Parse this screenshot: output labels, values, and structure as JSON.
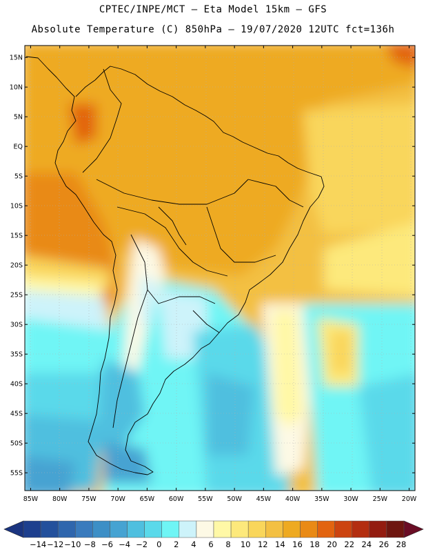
{
  "header": {
    "line1": "CPTEC/INPE/MCT –  Eta Model 15km – GFS",
    "line2": "Absolute Temperature (C) 850hPa – 19/07/2020 12UTC fct=136h"
  },
  "map": {
    "region": "South America",
    "lon_range": [
      -86,
      -19
    ],
    "lat_range": [
      -58,
      17
    ],
    "lat_labels": [
      "15N",
      "10N",
      "5N",
      "EQ",
      "5S",
      "10S",
      "15S",
      "20S",
      "25S",
      "30S",
      "35S",
      "40S",
      "45S",
      "50S",
      "55S"
    ],
    "lat_values": [
      15,
      10,
      5,
      0,
      -5,
      -10,
      -15,
      -20,
      -25,
      -30,
      -35,
      -40,
      -45,
      -50,
      -55
    ],
    "lon_labels": [
      "85W",
      "80W",
      "75W",
      "70W",
      "65W",
      "60W",
      "55W",
      "50W",
      "45W",
      "40W",
      "35W",
      "30W",
      "25W",
      "20W"
    ],
    "lon_values": [
      -85,
      -80,
      -75,
      -70,
      -65,
      -60,
      -55,
      -50,
      -45,
      -40,
      -35,
      -30,
      -25,
      -20
    ]
  },
  "colorbar": {
    "labels": [
      "-14",
      "-12",
      "-10",
      "-8",
      "-6",
      "-4",
      "-2",
      "0",
      "2",
      "4",
      "6",
      "8",
      "10",
      "12",
      "14",
      "16",
      "18",
      "20",
      "22",
      "24",
      "26",
      "28"
    ],
    "colors": [
      "#1d3f8e",
      "#23509c",
      "#2f66ad",
      "#3a7bbd",
      "#3d8fc6",
      "#46a3d2",
      "#4fbfdf",
      "#5ad9ea",
      "#6ff5f5",
      "#cdf3fa",
      "#fdf9e5",
      "#fff8a6",
      "#fde97c",
      "#f9d65b",
      "#f3c043",
      "#eeaa21",
      "#e98a15",
      "#e26410",
      "#cc4410",
      "#b32e10",
      "#931c10",
      "#6e1610"
    ],
    "left_color": "#1a3480",
    "right_color": "#6a0d25"
  }
}
